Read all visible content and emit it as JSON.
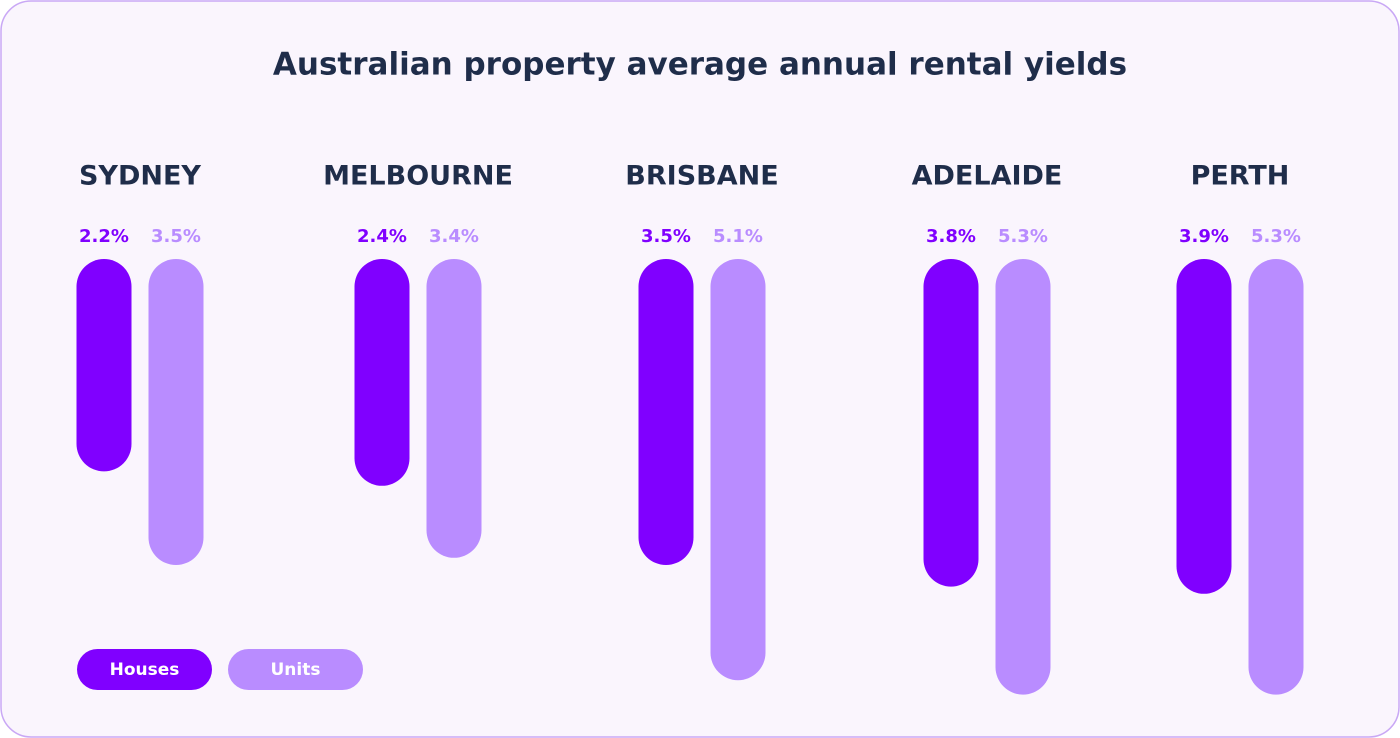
{
  "chart_data": {
    "type": "bar",
    "title": "Australian property average annual rental yields",
    "categories": [
      "SYDNEY",
      "MELBOURNE",
      "BRISBANE",
      "ADELAIDE",
      "PERTH"
    ],
    "series": [
      {
        "name": "Houses",
        "color": "#8000ff",
        "values": [
          2.2,
          2.4,
          3.5,
          3.8,
          3.9
        ],
        "value_labels": [
          "2.2%",
          "2.4%",
          "3.5%",
          "3.8%",
          "3.9%"
        ]
      },
      {
        "name": "Units",
        "color": "#b98cff",
        "values": [
          3.5,
          3.4,
          5.1,
          5.3,
          5.3
        ],
        "value_labels": [
          "3.5%",
          "3.4%",
          "5.1%",
          "5.3%",
          "5.3%"
        ]
      }
    ]
  }
}
